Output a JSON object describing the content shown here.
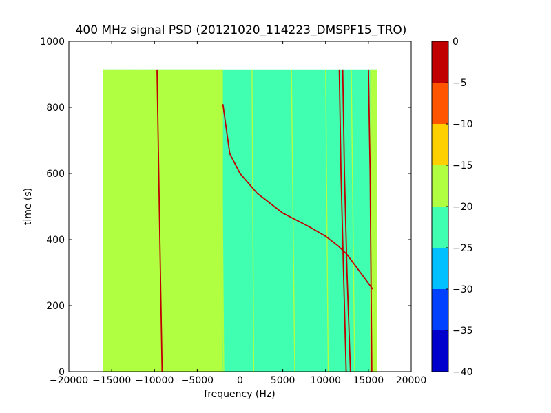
{
  "chart_data": {
    "type": "heatmap",
    "title": "400 MHz signal PSD (20121020_114223_DMSPF15_TRO)",
    "xlabel": "frequency (Hz)",
    "ylabel": "time (s)",
    "xlim": [
      -20000,
      20000
    ],
    "ylim": [
      0,
      1000
    ],
    "x_ticks": [
      -20000,
      -15000,
      -10000,
      -5000,
      0,
      5000,
      10000,
      15000,
      20000
    ],
    "x_tick_labels": [
      "−20000",
      "−15000",
      "−10000",
      "−5000",
      "0",
      "5000",
      "10000",
      "15000",
      "20000"
    ],
    "y_ticks": [
      0,
      200,
      400,
      600,
      800,
      1000
    ],
    "y_tick_labels": [
      "0",
      "200",
      "400",
      "600",
      "800",
      "1000"
    ],
    "data_extent": {
      "freq_min": -16000,
      "freq_max": 16000,
      "time_min": 0,
      "time_max": 915
    },
    "background_level": -22.5,
    "low_freq_band": {
      "freq_min": -16000,
      "freq_max": -2000,
      "level": -17.5
    },
    "colorbar": {
      "levels": [
        -40,
        -35,
        -30,
        -25,
        -20,
        -15,
        -10,
        -5,
        0
      ],
      "tick_labels": [
        "−40",
        "−35",
        "−30",
        "−25",
        "−20",
        "−15",
        "−10",
        "−5",
        "0"
      ],
      "colors": [
        "#0000cd",
        "#0040ff",
        "#00c0ff",
        "#40ffb0",
        "#b0ff40",
        "#ffd000",
        "#ff5500",
        "#c00000"
      ]
    },
    "series": [
      {
        "level": -2.5,
        "points": [
          [
            -9700,
            915
          ],
          [
            -9500,
            600
          ],
          [
            -9300,
            300
          ],
          [
            -9100,
            0
          ]
        ]
      },
      {
        "level": -17.5,
        "points": [
          [
            -15500,
            915
          ],
          [
            -15300,
            0
          ]
        ]
      },
      {
        "level": -17.5,
        "points": [
          [
            -14000,
            915
          ],
          [
            -13900,
            0
          ]
        ]
      },
      {
        "level": -17.5,
        "points": [
          [
            -11600,
            915
          ],
          [
            -11300,
            0
          ]
        ]
      },
      {
        "level": -17.5,
        "points": [
          [
            -2200,
            915
          ],
          [
            -1900,
            0
          ]
        ]
      },
      {
        "level": -17.5,
        "points": [
          [
            1400,
            915
          ],
          [
            1600,
            0
          ]
        ]
      },
      {
        "level": -17.5,
        "points": [
          [
            6000,
            915
          ],
          [
            6400,
            0
          ]
        ]
      },
      {
        "level": -17.5,
        "points": [
          [
            10000,
            915
          ],
          [
            10300,
            0
          ]
        ]
      },
      {
        "level": -2.5,
        "points": [
          [
            11600,
            915
          ],
          [
            11800,
            600
          ],
          [
            12100,
            300
          ],
          [
            12400,
            0
          ]
        ]
      },
      {
        "level": -2.5,
        "points": [
          [
            12000,
            915
          ],
          [
            12200,
            600
          ],
          [
            12500,
            300
          ],
          [
            12900,
            0
          ]
        ]
      },
      {
        "level": -17.5,
        "points": [
          [
            13000,
            915
          ],
          [
            13400,
            0
          ]
        ]
      },
      {
        "level": -2.5,
        "points": [
          [
            15000,
            915
          ],
          [
            15200,
            600
          ],
          [
            15400,
            0
          ]
        ]
      },
      {
        "level": -2.5,
        "points": [
          [
            -2000,
            810
          ],
          [
            -1200,
            660
          ],
          [
            0,
            600
          ],
          [
            2000,
            540
          ],
          [
            5000,
            480
          ],
          [
            8000,
            440
          ],
          [
            10000,
            410
          ],
          [
            11500,
            380
          ],
          [
            12500,
            355
          ],
          [
            13500,
            320
          ],
          [
            14500,
            285
          ],
          [
            15500,
            250
          ]
        ]
      }
    ]
  }
}
